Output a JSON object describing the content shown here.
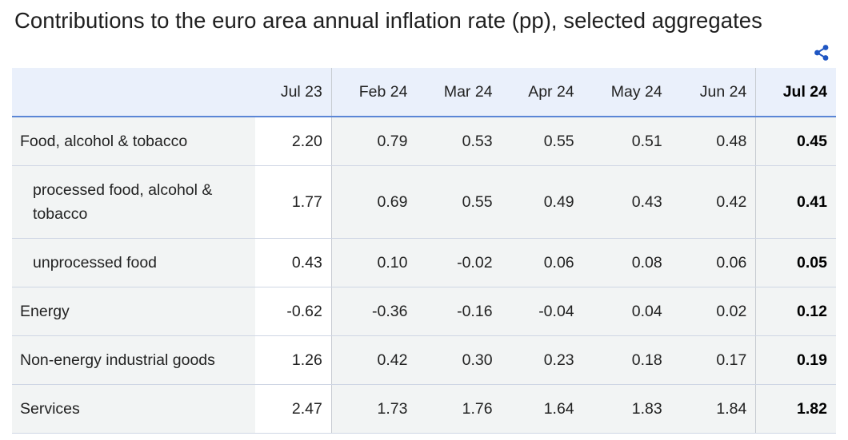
{
  "title": "Contributions to the euro area annual inflation rate (pp), selected aggregates",
  "share_icon": "share-icon",
  "colors": {
    "header_bg": "#eaf0fb",
    "header_rule": "#5b86d6",
    "alt_row": "#f2f4f4",
    "share_icon": "#1f56c3"
  },
  "table": {
    "columns": [
      "",
      "Jul 23",
      "Feb 24",
      "Mar 24",
      "Apr 24",
      "May 24",
      "Jun 24",
      "Jul 24"
    ],
    "rows": [
      {
        "label": "Food, alcohol & tobacco",
        "values": [
          "2.20",
          "0.79",
          "0.53",
          "0.55",
          "0.51",
          "0.48",
          "0.45"
        ]
      },
      {
        "label": "processed food, alcohol & tobacco",
        "values": [
          "1.77",
          "0.69",
          "0.55",
          "0.49",
          "0.43",
          "0.42",
          "0.41"
        ]
      },
      {
        "label": "unprocessed food",
        "values": [
          "0.43",
          "0.10",
          "-0.02",
          "0.06",
          "0.08",
          "0.06",
          "0.05"
        ]
      },
      {
        "label": "Energy",
        "values": [
          "-0.62",
          "-0.36",
          "-0.16",
          "-0.04",
          "0.04",
          "0.02",
          "0.12"
        ]
      },
      {
        "label": "Non-energy industrial goods",
        "values": [
          "1.26",
          "0.42",
          "0.30",
          "0.23",
          "0.18",
          "0.17",
          "0.19"
        ]
      },
      {
        "label": "Services",
        "values": [
          "2.47",
          "1.73",
          "1.76",
          "1.64",
          "1.83",
          "1.84",
          "1.82"
        ]
      }
    ]
  }
}
